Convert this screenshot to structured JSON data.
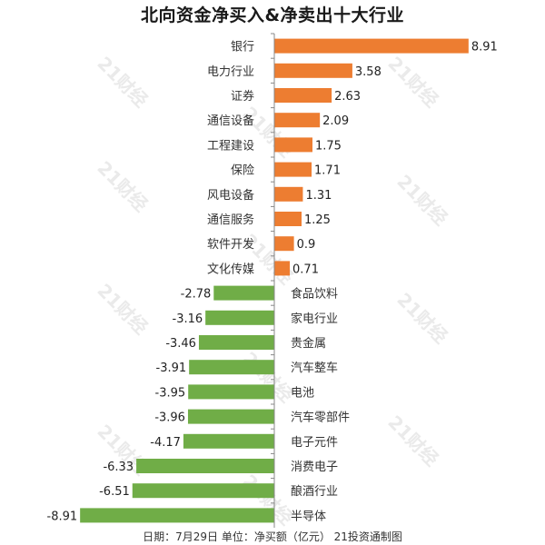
{
  "chart_data": {
    "type": "bar",
    "orientation": "horizontal",
    "title": "北向资金净买入&净卖出十大行业",
    "footer": "日期：7月29日  单位：净买额（亿元）  21投资通制图",
    "watermark": "21财经",
    "categories": [
      "银行",
      "电力行业",
      "证券",
      "通信设备",
      "工程建设",
      "保险",
      "风电设备",
      "通信服务",
      "软件开发",
      "文化传媒",
      "食品饮料",
      "家电行业",
      "贵金属",
      "汽车整车",
      "电池",
      "汽车零部件",
      "电子元件",
      "消费电子",
      "酿酒行业",
      "半导体"
    ],
    "values": [
      8.91,
      3.58,
      2.63,
      2.09,
      1.75,
      1.71,
      1.31,
      1.25,
      0.9,
      0.71,
      -2.78,
      -3.16,
      -3.46,
      -3.91,
      -3.95,
      -3.96,
      -4.17,
      -6.33,
      -6.51,
      -8.91
    ],
    "value_labels": [
      "8.91",
      "3.58",
      "2.63",
      "2.09",
      "1.75",
      "1.71",
      "1.31",
      "1.25",
      "0.9",
      "0.71",
      "-2.78",
      "-3.16",
      "-3.46",
      "-3.91",
      "-3.95",
      "-3.96",
      "-4.17",
      "-6.33",
      "-6.51",
      "-8.91"
    ],
    "xlim": [
      -8.91,
      8.91
    ],
    "grid": false,
    "legend": "none",
    "colors": {
      "positive": "#ED7D31",
      "negative": "#70AD47",
      "axis": "#888888"
    }
  }
}
